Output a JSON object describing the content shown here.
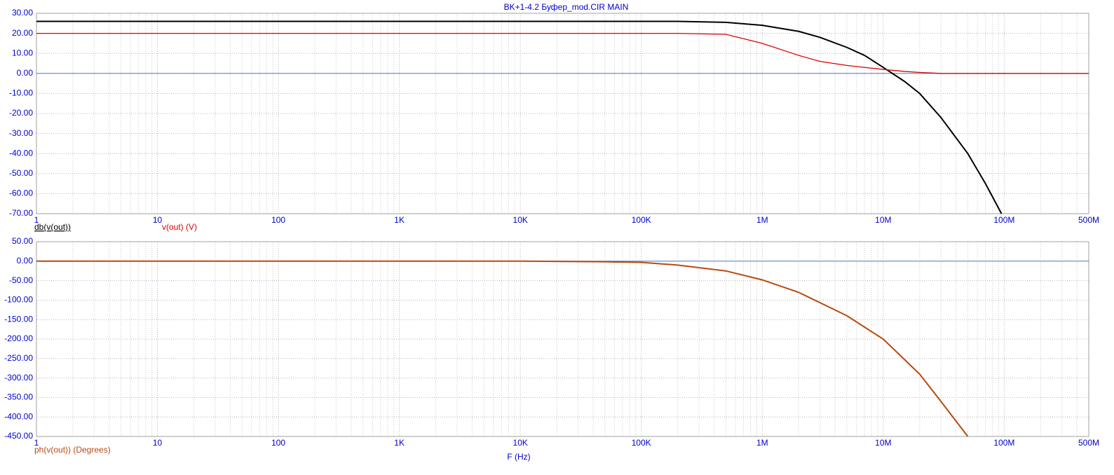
{
  "chart_data": [
    {
      "type": "line",
      "title": "BK+1-4.2 Буфер_mod.CIR MAIN",
      "log_x": true,
      "grid": true,
      "minor_grid": true,
      "x": [
        1,
        10,
        100,
        1000,
        10000,
        100000,
        200000,
        500000,
        1000000,
        2000000,
        3000000,
        5000000,
        7000000,
        10000000,
        15000000,
        20000000,
        30000000,
        50000000,
        70000000,
        95000000,
        200000000,
        500000000
      ],
      "series": [
        {
          "name": "db(v(out))",
          "color": "#000000",
          "values": [
            26,
            26,
            26,
            26,
            26,
            26,
            26,
            25.5,
            24,
            21,
            18,
            13,
            9,
            3,
            -4,
            -10,
            -22,
            -40,
            -55,
            -70,
            null,
            null
          ]
        },
        {
          "name": "v(out) (V)",
          "color": "#e00000",
          "values": [
            20,
            20,
            20,
            20,
            20,
            20,
            20,
            19.5,
            15,
            9,
            6,
            4,
            3,
            2,
            1,
            0.5,
            0,
            0,
            0,
            0,
            0,
            0
          ]
        }
      ],
      "xlim": [
        1,
        500000000
      ],
      "xticks": [
        1,
        10,
        100,
        {
          "value": 1000,
          "label": "1K"
        },
        {
          "value": 10000,
          "label": "10K"
        },
        {
          "value": 100000,
          "label": "100K"
        },
        {
          "value": 1000000,
          "label": "1M"
        },
        {
          "value": 10000000,
          "label": "10M"
        },
        {
          "value": 100000000,
          "label": "100M"
        },
        {
          "value": 500000000,
          "label": "500M"
        }
      ],
      "ylim": [
        -70,
        30
      ],
      "yticks": [
        {
          "value": -70,
          "label": "-70.00"
        },
        {
          "value": -60,
          "label": "-60.00"
        },
        {
          "value": -50,
          "label": "-50.00"
        },
        {
          "value": -40,
          "label": "-40.00"
        },
        {
          "value": -30,
          "label": "-30.00"
        },
        {
          "value": -20,
          "label": "-20.00"
        },
        {
          "value": -10,
          "label": "-10.00"
        },
        {
          "value": 0,
          "label": "0.00"
        },
        {
          "value": 10,
          "label": "10.00"
        },
        {
          "value": 20,
          "label": "20.00"
        },
        {
          "value": 30,
          "label": "30.00"
        }
      ]
    },
    {
      "type": "line",
      "xlabel": "F (Hz)",
      "log_x": true,
      "grid": true,
      "minor_grid": true,
      "x": [
        1,
        10,
        100,
        1000,
        10000,
        20000,
        50000,
        100000,
        200000,
        500000,
        1000000,
        2000000,
        5000000,
        10000000,
        20000000,
        30000000,
        50000000
      ],
      "series": [
        {
          "name": "ph(v(out)) (Degrees)",
          "color": "#b84a10",
          "values": [
            0,
            0,
            0,
            0,
            0,
            -0.5,
            -1.5,
            -3,
            -10,
            -25,
            -48,
            -80,
            -140,
            -200,
            -290,
            -360,
            -450
          ]
        }
      ],
      "xlim": [
        1,
        500000000
      ],
      "xticks": [
        1,
        10,
        100,
        {
          "value": 1000,
          "label": "1K"
        },
        {
          "value": 10000,
          "label": "10K"
        },
        {
          "value": 100000,
          "label": "100K"
        },
        {
          "value": 1000000,
          "label": "1M"
        },
        {
          "value": 10000000,
          "label": "10M"
        },
        {
          "value": 100000000,
          "label": "100M"
        },
        {
          "value": 500000000,
          "label": "500M"
        }
      ],
      "ylim": [
        -450,
        50
      ],
      "yticks": [
        {
          "value": -450,
          "label": "-450.00"
        },
        {
          "value": -400,
          "label": "-400.00"
        },
        {
          "value": -350,
          "label": "-350.00"
        },
        {
          "value": -300,
          "label": "-300.00"
        },
        {
          "value": -250,
          "label": "-250.00"
        },
        {
          "value": -200,
          "label": "-200.00"
        },
        {
          "value": -150,
          "label": "-150.00"
        },
        {
          "value": -100,
          "label": "-100.00"
        },
        {
          "value": -50,
          "label": "-50.00"
        },
        {
          "value": 0,
          "label": "0.00"
        },
        {
          "value": 50,
          "label": "50.00"
        }
      ]
    }
  ]
}
